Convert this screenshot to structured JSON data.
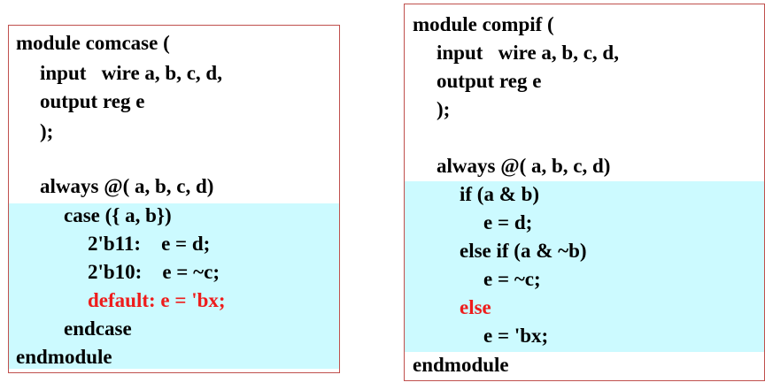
{
  "colors": {
    "border": "#c0504d",
    "highlight": "#ccfaff",
    "keyword_red": "#ee1c1c",
    "text": "#000000"
  },
  "left_panel": {
    "lines": [
      "module comcase (",
      "input   wire a, b, c, d,",
      "output reg e",
      ");",
      "always @( a, b, c, d)",
      "case ({ a, b})",
      "2'b11:    e = d;",
      "2'b10:    e = ~c;",
      "default: e = 'bx;",
      "endcase",
      "endmodule"
    ]
  },
  "right_panel": {
    "lines": [
      "module compif (",
      "input   wire a, b, c, d,",
      "output reg e",
      ");",
      "always @( a, b, c, d)",
      "if (a & b)",
      "e = d;",
      "else if (a & ~b)",
      "e = ~c;",
      "else",
      "e = 'bx;",
      "endmodule"
    ]
  }
}
